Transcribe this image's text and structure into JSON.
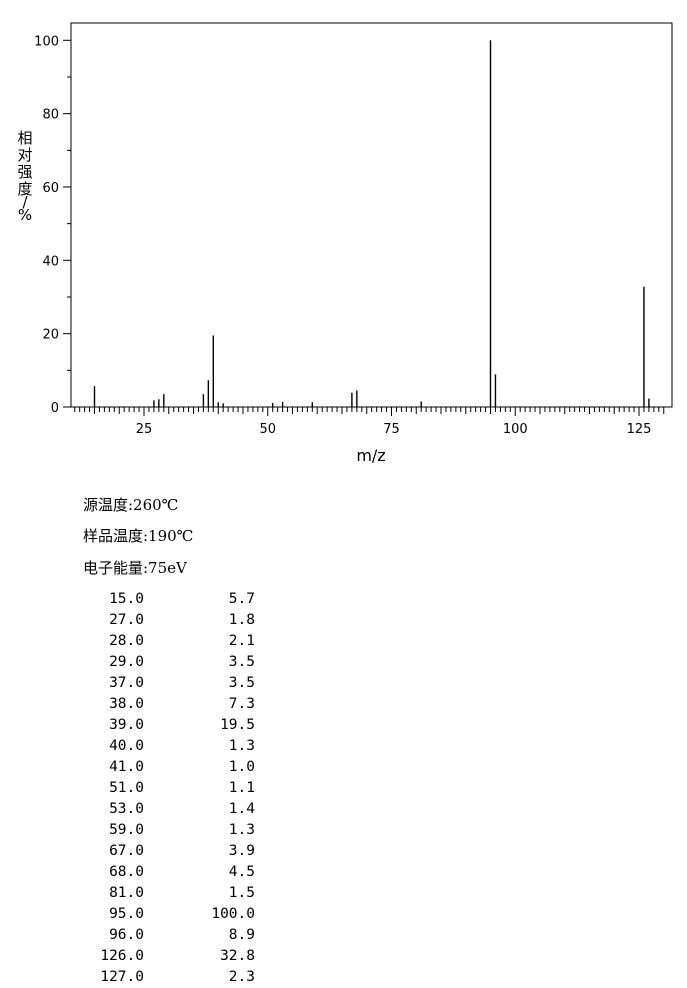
{
  "chart_data": {
    "type": "bar",
    "ylabel": "相对强度/%",
    "xlabel": "m/z",
    "xlim": [
      10,
      130
    ],
    "ylim": [
      0,
      105
    ],
    "x_ticks": [
      25,
      50,
      75,
      100,
      125
    ],
    "y_ticks": [
      0,
      20,
      40,
      60,
      80,
      100
    ],
    "grid": false,
    "peaks": [
      {
        "mz": 15,
        "intensity": 5.7
      },
      {
        "mz": 27,
        "intensity": 1.8
      },
      {
        "mz": 28,
        "intensity": 2.1
      },
      {
        "mz": 29,
        "intensity": 3.5
      },
      {
        "mz": 37,
        "intensity": 3.5
      },
      {
        "mz": 38,
        "intensity": 7.3
      },
      {
        "mz": 39,
        "intensity": 19.5
      },
      {
        "mz": 40,
        "intensity": 1.3
      },
      {
        "mz": 41,
        "intensity": 1.0
      },
      {
        "mz": 51,
        "intensity": 1.1
      },
      {
        "mz": 53,
        "intensity": 1.4
      },
      {
        "mz": 59,
        "intensity": 1.3
      },
      {
        "mz": 67,
        "intensity": 3.9
      },
      {
        "mz": 68,
        "intensity": 4.5
      },
      {
        "mz": 81,
        "intensity": 1.5
      },
      {
        "mz": 95,
        "intensity": 100.0
      },
      {
        "mz": 96,
        "intensity": 8.9
      },
      {
        "mz": 126,
        "intensity": 32.8
      },
      {
        "mz": 127,
        "intensity": 2.3
      }
    ]
  },
  "conditions": {
    "source_temp": "源温度:260℃",
    "sample_temp": "样品温度:190℃",
    "electron_energy": "电子能量:75eV"
  },
  "peak_table": [
    {
      "mz": "15.0",
      "intensity": "5.7"
    },
    {
      "mz": "27.0",
      "intensity": "1.8"
    },
    {
      "mz": "28.0",
      "intensity": "2.1"
    },
    {
      "mz": "29.0",
      "intensity": "3.5"
    },
    {
      "mz": "37.0",
      "intensity": "3.5"
    },
    {
      "mz": "38.0",
      "intensity": "7.3"
    },
    {
      "mz": "39.0",
      "intensity": "19.5"
    },
    {
      "mz": "40.0",
      "intensity": "1.3"
    },
    {
      "mz": "41.0",
      "intensity": "1.0"
    },
    {
      "mz": "51.0",
      "intensity": "1.1"
    },
    {
      "mz": "53.0",
      "intensity": "1.4"
    },
    {
      "mz": "59.0",
      "intensity": "1.3"
    },
    {
      "mz": "67.0",
      "intensity": "3.9"
    },
    {
      "mz": "68.0",
      "intensity": "4.5"
    },
    {
      "mz": "81.0",
      "intensity": "1.5"
    },
    {
      "mz": "95.0",
      "intensity": "100.0"
    },
    {
      "mz": "96.0",
      "intensity": "8.9"
    },
    {
      "mz": "126.0",
      "intensity": "32.8"
    },
    {
      "mz": "127.0",
      "intensity": "2.3"
    }
  ]
}
